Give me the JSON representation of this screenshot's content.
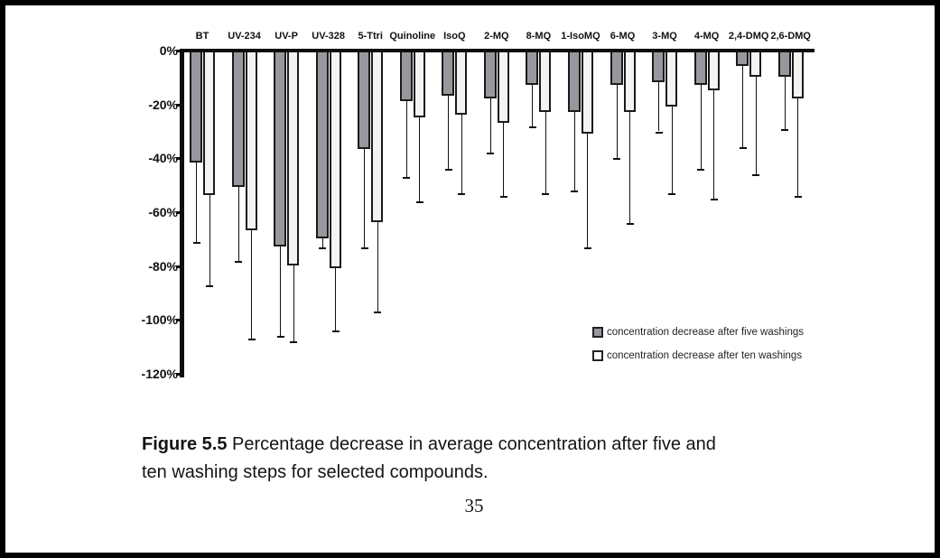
{
  "chart_data": {
    "type": "bar",
    "title": "",
    "xlabel": "",
    "ylabel": "",
    "categories": [
      "BT",
      "UV-234",
      "UV-P",
      "UV-328",
      "5-Ttri",
      "Quinoline",
      "IsoQ",
      "2-MQ",
      "8-MQ",
      "1-IsoMQ",
      "6-MQ",
      "3-MQ",
      "4-MQ",
      "2,4-DMQ",
      "2,6-DMQ"
    ],
    "series": [
      {
        "name": "concentration decrease after five washings",
        "color": "#96989D",
        "values": [
          -41,
          -50,
          -72,
          -69,
          -36,
          -18,
          -16,
          -17,
          -12,
          -22,
          -12,
          -11,
          -12,
          -5,
          -9
        ],
        "error_bar_ends": [
          -71,
          -78,
          -106,
          -73,
          -73,
          -47,
          -44,
          -38,
          -28,
          -52,
          -40,
          -30,
          -44,
          -36,
          -29
        ]
      },
      {
        "name": "concentration decrease after ten washings",
        "color": "#F3F3F3",
        "values": [
          -53,
          -66,
          -79,
          -80,
          -63,
          -24,
          -23,
          -26,
          -22,
          -30,
          -22,
          -20,
          -14,
          -9,
          -17
        ],
        "error_bar_ends": [
          -87,
          -107,
          -108,
          -104,
          -97,
          -56,
          -53,
          -54,
          -53,
          -73,
          -64,
          -53,
          -55,
          -46,
          -54
        ]
      }
    ],
    "ylim": [
      -120,
      0
    ],
    "y_tick_values": [
      0,
      -20,
      -40,
      -60,
      -80,
      -100,
      -120
    ],
    "y_tick_labels": [
      "0%",
      "-20%",
      "-40%",
      "-60%",
      "-80%",
      "-100%",
      "-120%"
    ],
    "unit": "%",
    "grid": false,
    "legend_position": "inside-right",
    "bar_outline_color": "#1a1a1a"
  },
  "caption": {
    "label": "Figure 5.5",
    "line1": "Percentage decrease in average concentration after five and",
    "line2": "ten washing steps for selected compounds."
  },
  "page_number": "35"
}
